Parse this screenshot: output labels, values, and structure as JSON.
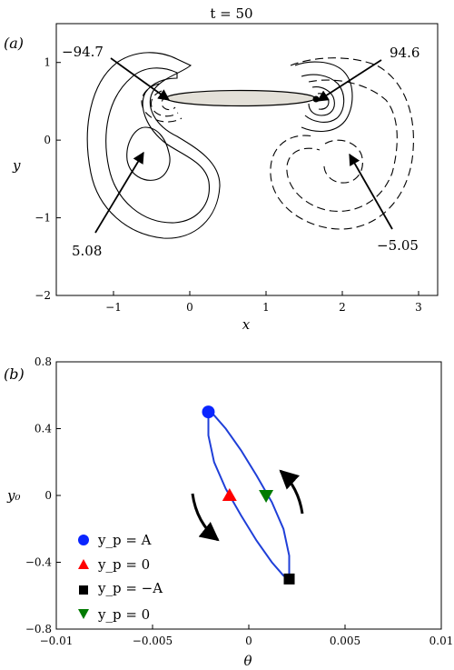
{
  "chart_data": [
    {
      "type": "contour",
      "panel_label": "(a)",
      "title": "t = 50",
      "xlabel": "x",
      "ylabel": "y",
      "xlim": [
        -1.75,
        3.25
      ],
      "ylim": [
        -2,
        1.5
      ],
      "xticks": [
        -1,
        0,
        1,
        2,
        3
      ],
      "yticks": [
        1,
        0,
        -1,
        -2
      ],
      "plate": {
        "center": [
          0.8,
          0.52
        ],
        "half_length": 1.15,
        "half_thickness": 0.1
      },
      "annotations": [
        {
          "text": "−94.7",
          "at": [
            -0.3,
            0.5
          ]
        },
        {
          "text": "94.6",
          "at": [
            1.65,
            0.5
          ]
        },
        {
          "text": "5.08",
          "at": [
            -0.6,
            -0.18
          ]
        },
        {
          "text": "−5.05",
          "at": [
            1.95,
            -0.18
          ]
        }
      ]
    },
    {
      "type": "line",
      "panel_label": "(b)",
      "xlabel": "θ",
      "ylabel": "y₀",
      "xlim": [
        -0.01,
        0.01
      ],
      "ylim": [
        -0.8,
        0.8
      ],
      "xticks": [
        -0.01,
        -0.005,
        0,
        0.005,
        0.01
      ],
      "yticks": [
        0.8,
        0.4,
        0,
        -0.4,
        -0.8
      ],
      "series": [
        {
          "color": "#1f3fd8",
          "x": [
            -0.0021,
            -0.0018,
            -0.0012,
            -0.0004,
            0.0004,
            0.0012,
            0.0018,
            0.0021,
            0.0021,
            0.0018,
            0.0012,
            0.0004,
            -0.0004,
            -0.0012,
            -0.0018,
            -0.0021,
            -0.0021
          ],
          "y": [
            0.5,
            0.48,
            0.4,
            0.27,
            0.12,
            -0.04,
            -0.2,
            -0.36,
            -0.5,
            -0.48,
            -0.4,
            -0.27,
            -0.12,
            0.04,
            0.2,
            0.36,
            0.5
          ]
        }
      ],
      "markers": [
        {
          "label": "y_p = A",
          "shape": "circle",
          "color": "#0a25ff",
          "x": -0.0021,
          "y": 0.5
        },
        {
          "label": "y_p = 0",
          "shape": "triangle-up",
          "color": "#ff0000",
          "x": -0.001,
          "y": 0.0
        },
        {
          "label": "y_p = −A",
          "shape": "square",
          "color": "#000000",
          "x": 0.0021,
          "y": -0.5
        },
        {
          "label": "y_p = 0",
          "shape": "triangle-down",
          "color": "#007a00",
          "x": 0.0009,
          "y": 0.0
        }
      ],
      "legend_placement": "bottom-left",
      "grid": false
    }
  ]
}
